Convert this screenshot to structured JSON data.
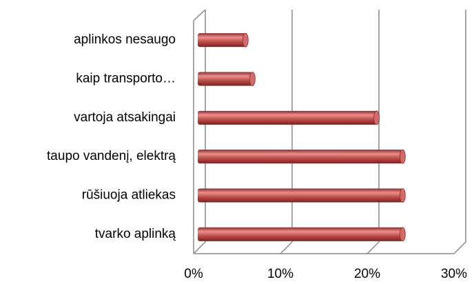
{
  "chart_data": {
    "type": "bar",
    "orientation": "horizontal",
    "categories": [
      "aplinkos nesaugo",
      "kaip transporto…",
      "vartoja atsakingai",
      "taupo vandenį, elektrą",
      "rūšiuoja atliekas",
      "tvarko aplinką"
    ],
    "values": [
      5.5,
      6.3,
      20.6,
      23.6,
      23.6,
      23.6
    ],
    "color": "#c0504d",
    "xlim": [
      0,
      30
    ],
    "xticks": [
      {
        "value": 0,
        "label": "0%"
      },
      {
        "value": 10,
        "label": "10%"
      },
      {
        "value": 20,
        "label": "20%"
      },
      {
        "value": 30,
        "label": "30%"
      }
    ],
    "grid": true
  }
}
